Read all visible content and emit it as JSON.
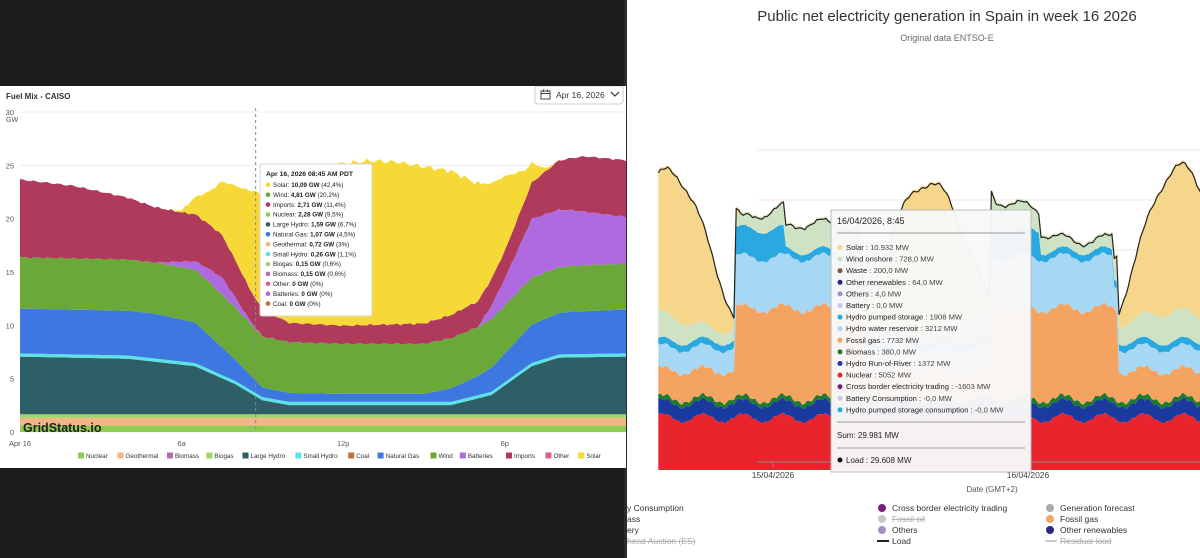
{
  "caiso": {
    "title": "Fuel Mix - CAISO",
    "date_picker": "Apr 16, 2026",
    "y_unit": "GW",
    "y_ticks": [
      0,
      5,
      10,
      15,
      20,
      25,
      30
    ],
    "x_ticks": [
      {
        "h": 0,
        "label": "Apr 16"
      },
      {
        "h": 6,
        "label": "6a"
      },
      {
        "h": 12,
        "label": "12p"
      },
      {
        "h": 18,
        "label": "6p"
      }
    ],
    "watermark": "GridStatus.io",
    "tooltip": {
      "hour": 8.75,
      "header": "Apr 16, 2026 08:45 AM PDT",
      "rows": [
        {
          "label": "Solar:",
          "value": "10,09 GW",
          "pct": "(42,4%)",
          "color": "#f6d937"
        },
        {
          "label": "Wind:",
          "value": "4,81 GW",
          "pct": "(20,2%)",
          "color": "#6aa83a"
        },
        {
          "label": "Imports:",
          "value": "2,71 GW",
          "pct": "(11,4%)",
          "color": "#b03a5b"
        },
        {
          "label": "Nuclear:",
          "value": "2,28 GW",
          "pct": "(9,5%)",
          "color": "#8ccc50"
        },
        {
          "label": "Large Hydro:",
          "value": "1,59 GW",
          "pct": "(6,7%)",
          "color": "#2e5e66"
        },
        {
          "label": "Natural Gas:",
          "value": "1,07 GW",
          "pct": "(4,5%)",
          "color": "#3c78e0"
        },
        {
          "label": "Geothermal:",
          "value": "0,72 GW",
          "pct": "(3%)",
          "color": "#f3b486"
        },
        {
          "label": "Small Hydro:",
          "value": "0,26 GW",
          "pct": "(1,1%)",
          "color": "#5ce3e8"
        },
        {
          "label": "Biogas:",
          "value": "0,15 GW",
          "pct": "(0,6%)",
          "color": "#a0d468"
        },
        {
          "label": "Biomass:",
          "value": "0,15 GW",
          "pct": "(0,6%)",
          "color": "#b36bb0"
        },
        {
          "label": "Other:",
          "value": "0 GW",
          "pct": "(0%)",
          "color": "#e35d8f"
        },
        {
          "label": "Batteries:",
          "value": "0 GW",
          "pct": "(0%)",
          "color": "#b06ae0"
        },
        {
          "label": "Coal:",
          "value": "0 GW",
          "pct": "(0%)",
          "color": "#c0703a"
        }
      ]
    },
    "legend": [
      {
        "label": "Nuclear",
        "color": "#8ccc50"
      },
      {
        "label": "Geothermal",
        "color": "#f3b486"
      },
      {
        "label": "Biomass",
        "color": "#b36bb0"
      },
      {
        "label": "Biogas",
        "color": "#a0d468"
      },
      {
        "label": "Large Hydro",
        "color": "#2e5e66"
      },
      {
        "label": "Small Hydro",
        "color": "#5ce3e8"
      },
      {
        "label": "Coal",
        "color": "#c0703a"
      },
      {
        "label": "Natural Gas",
        "color": "#3c78e0"
      },
      {
        "label": "Wind",
        "color": "#6aa83a"
      },
      {
        "label": "Batteries",
        "color": "#b06ae0"
      },
      {
        "label": "Imports",
        "color": "#b03a5b"
      },
      {
        "label": "Other",
        "color": "#e35d8f"
      },
      {
        "label": "Solar",
        "color": "#f6d937"
      }
    ]
  },
  "spain": {
    "title": "Public net electricity generation in Spain in week 16 2026",
    "subtitle": "Original data ENTSO-E",
    "x_ticks": [
      {
        "d": 0,
        "label": "15/04/2026"
      },
      {
        "d": 1,
        "label": "16/04/2026"
      },
      {
        "d": 2,
        "label": "17/04/2026"
      }
    ],
    "x_axis_label": "Date (GMT+2)",
    "tooltip": {
      "header": "16/04/2026, 8:45",
      "rows": [
        {
          "label": "Solar",
          "value": "10.932 MW",
          "color": "#f6d68a"
        },
        {
          "label": "Wind onshore",
          "value": "728,0 MW",
          "color": "#cfe3c4"
        },
        {
          "label": "Waste",
          "value": "200,0 MW",
          "color": "#7a5a3a"
        },
        {
          "label": "Other renewables",
          "value": "64,0 MW",
          "color": "#2a2a80"
        },
        {
          "label": "Others",
          "value": "4,0 MW",
          "color": "#a78bc4"
        },
        {
          "label": "Battery",
          "value": "0,0 MW",
          "color": "#c8c8e8"
        },
        {
          "label": "Hydro pumped storage",
          "value": "1908 MW",
          "color": "#2aa8e0"
        },
        {
          "label": "Hydro water reservoir",
          "value": "3212 MW",
          "color": "#a6d8f5"
        },
        {
          "label": "Fossil gas",
          "value": "7732 MW",
          "color": "#f4a460"
        },
        {
          "label": "Biomass",
          "value": "380,0 MW",
          "color": "#1e7a2e"
        },
        {
          "label": "Hydro Run-of-River",
          "value": "1372 MW",
          "color": "#1a3aa0"
        },
        {
          "label": "Nuclear",
          "value": "5052 MW",
          "color": "#e8252c"
        },
        {
          "label": "Cross border electricity trading",
          "value": "-1603 MW",
          "color": "#7b1e7e"
        },
        {
          "label": "Battery Consumption",
          "value": "-0,0 MW",
          "color": "#c8c8e8"
        },
        {
          "label": "Hydro pumped storage consumption",
          "value": "-0,0 MW",
          "color": "#2aa8e0"
        }
      ],
      "sum_text": "Sum: 29.981 MW",
      "load_label": "Load",
      "load_value": "29.608 MW",
      "load_color": "#111111"
    },
    "legend": [
      {
        "label": "y Consumption",
        "type": "none",
        "color": "#555555"
      },
      {
        "label": "ass",
        "type": "none",
        "color": "#555555"
      },
      {
        "label": "ery",
        "type": "none",
        "color": "#555555"
      },
      {
        "label": "head Auction (ES)",
        "type": "none",
        "color": "#bbbbbb"
      },
      {
        "label": "Cross border electricity trading",
        "type": "dot",
        "color": "#7b1e7e"
      },
      {
        "label": "Fossil oil",
        "type": "dot",
        "color": "#c8c8c8"
      },
      {
        "label": "Others",
        "type": "dot",
        "color": "#a78bc4"
      },
      {
        "label": "Load",
        "type": "line",
        "color": "#222222"
      },
      {
        "label": "Generation forecast",
        "type": "dot",
        "color": "#aaaaaa"
      },
      {
        "label": "Fossil gas",
        "type": "dot",
        "color": "#f4a460"
      },
      {
        "label": "Other renewables",
        "type": "dot",
        "color": "#2a2a80"
      },
      {
        "label": "Residual load",
        "type": "line",
        "color": "#cccccc"
      }
    ]
  }
}
